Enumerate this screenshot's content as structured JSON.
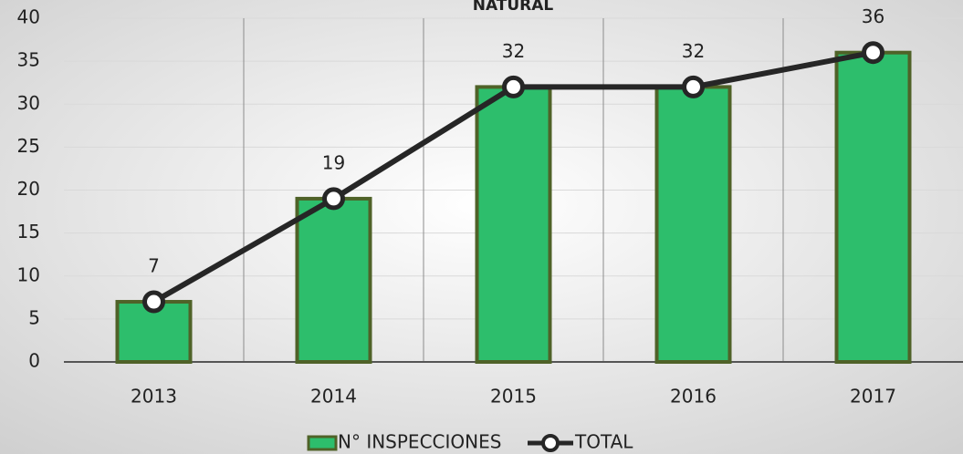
{
  "chart_data": {
    "type": "bar-line",
    "title": "NATURAL",
    "categories": [
      "2013",
      "2014",
      "2015",
      "2016",
      "2017"
    ],
    "series": [
      {
        "name": "N° INSPECCIONES",
        "type": "bar",
        "color": "#2dbe6c",
        "values": [
          7,
          19,
          32,
          32,
          36
        ]
      },
      {
        "name": "TOTAL",
        "type": "line",
        "color": "#262626",
        "values": [
          7,
          19,
          32,
          32,
          36
        ]
      }
    ],
    "ylim": [
      0,
      40
    ],
    "yticks": [
      0,
      5,
      10,
      15,
      20,
      25,
      30,
      35,
      40
    ],
    "grid": true,
    "legend": "bottom"
  }
}
